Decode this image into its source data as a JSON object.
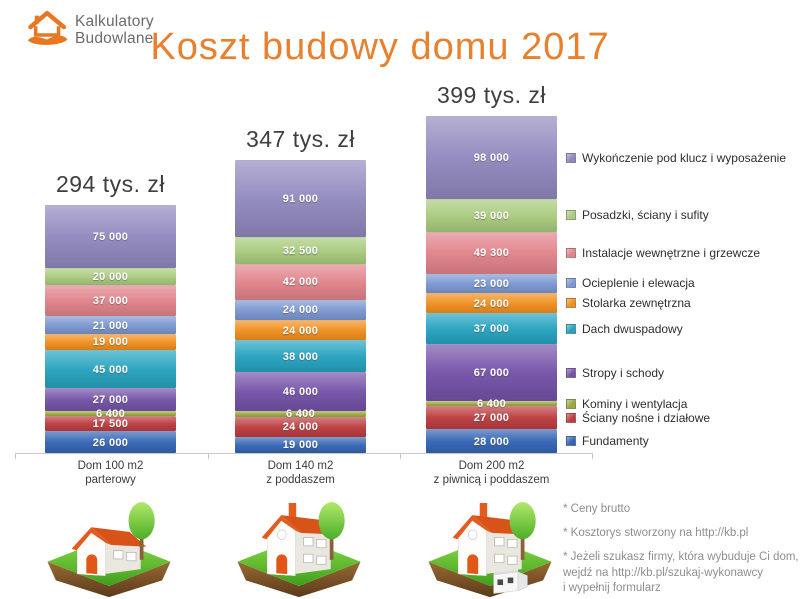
{
  "logo": {
    "line1": "Kalkulatory",
    "line2": "Budowlane",
    "brand_color": "#e87722",
    "text_color": "#6a6b6d"
  },
  "title": {
    "text": "Koszt budowy domu 2017",
    "color": "#e8802e"
  },
  "chart_data": {
    "type": "bar",
    "stacked": true,
    "unit": "zł",
    "value_axis_visible": false,
    "grid": false,
    "legend_position": "right",
    "value_label_color": "#ffffff",
    "baseline_color": "#c9c9c9",
    "categories": [
      {
        "line1": "Dom 100 m2",
        "line2": "parterowy",
        "total": 293900,
        "total_label": "294 tys. zł",
        "house_variant": "one-story"
      },
      {
        "line1": "Dom 140 m2",
        "line2": "z poddaszem",
        "total": 346900,
        "total_label": "347 tys. zł",
        "house_variant": "attic"
      },
      {
        "line1": "Dom 200 m2",
        "line2": "z piwnicą i poddaszem",
        "total": 398700,
        "total_label": "399 tys. zł",
        "house_variant": "attic-basement"
      }
    ],
    "series_bottom_to_top": [
      {
        "name": "Fundamenty",
        "color": "#3465b5",
        "values": [
          26000,
          19000,
          28000
        ]
      },
      {
        "name": "Ściany nośne i działowe",
        "color": "#bc3c3f",
        "values": [
          17500,
          24000,
          27000
        ]
      },
      {
        "name": "Kominy i wentylacja",
        "color": "#9ca83e",
        "values": [
          6400,
          6400,
          6400
        ]
      },
      {
        "name": "Stropy i schody",
        "color": "#7452a8",
        "values": [
          27000,
          46000,
          67000
        ]
      },
      {
        "name": "Dach dwuspadowy",
        "color": "#26a3c0",
        "values": [
          45000,
          38000,
          37000
        ]
      },
      {
        "name": "Stolarka zewnętrzna",
        "color": "#f18f1f",
        "values": [
          19000,
          24000,
          24000
        ]
      },
      {
        "name": "Ocieplenie i elewacja",
        "color": "#7b97d1",
        "values": [
          21000,
          24000,
          23000
        ]
      },
      {
        "name": "Instalacje wewnętrzne i grzewcze",
        "color": "#e0838a",
        "values": [
          37000,
          42000,
          49300
        ]
      },
      {
        "name": "Posadzki, ściany i sufity",
        "color": "#a9cb7e",
        "values": [
          20000,
          32500,
          39000
        ]
      },
      {
        "name": "Wykończenie pod klucz i wyposażenie",
        "color": "#9189be",
        "values": [
          75000,
          91000,
          98000
        ]
      }
    ]
  },
  "footnotes": [
    "* Ceny brutto",
    "* Kosztorys stworzony na http://kb.pl",
    "* Jeżeli szukasz firmy, która wybuduje Ci dom,\nwejdź na http://kb.pl/szukaj-wykonawcy\ni wypełnij formularz"
  ]
}
